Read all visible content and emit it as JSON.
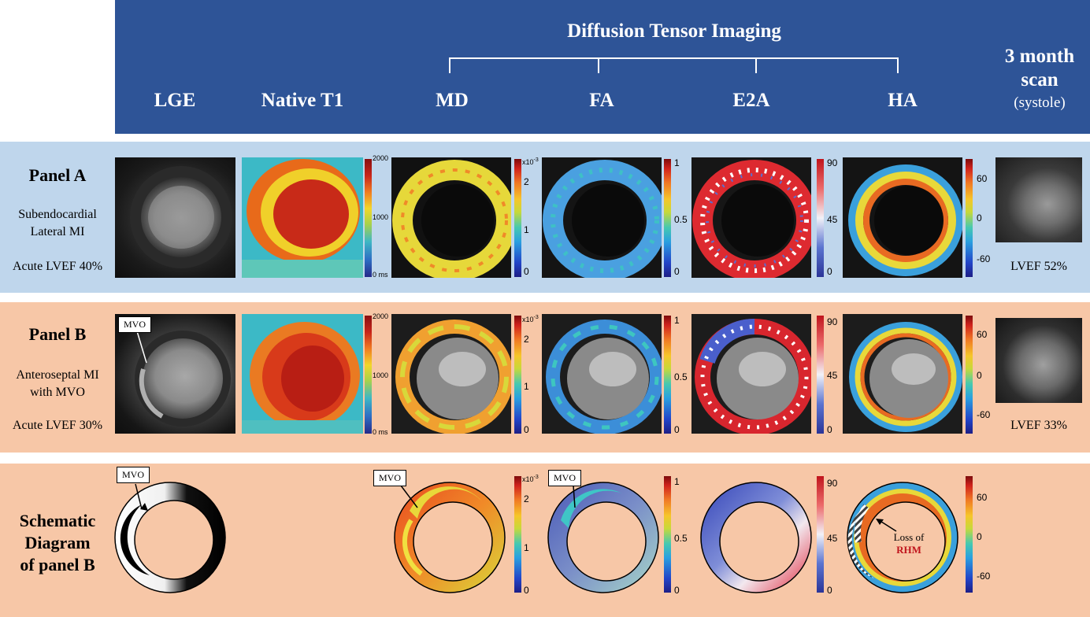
{
  "header": {
    "dti_title": "Diffusion Tensor Imaging",
    "columns": {
      "lge": "LGE",
      "native_t1": "Native T1",
      "md": "MD",
      "fa": "FA",
      "e2a": "E2A",
      "ha": "HA",
      "scan_line1": "3 month",
      "scan_line2": "scan",
      "scan_line3": "(systole)"
    }
  },
  "panel_a": {
    "title": "Panel A",
    "desc_line1": "Subendocardial",
    "desc_line2": "Lateral MI",
    "acute": "Acute LVEF 40%",
    "followup": "LVEF 52%"
  },
  "panel_b": {
    "title": "Panel B",
    "desc_line1": "Anteroseptal MI",
    "desc_line2": "with MVO",
    "acute": "Acute LVEF 30%",
    "followup": "LVEF 33%",
    "mvo_label": "MVO"
  },
  "schematic": {
    "title_line1": "Schematic",
    "title_line2": "Diagram",
    "title_line3": "of panel B",
    "mvo_label": "MVO",
    "loss_line1": "Loss of",
    "loss_line2": "RHM"
  },
  "colorbars": {
    "t1": {
      "top": "2000",
      "mid": "1000",
      "bottom": "0 ms"
    },
    "md": {
      "top": "x10",
      "exp": "-3",
      "t2": "2",
      "t1": "1",
      "bottom": "0"
    },
    "fa": {
      "top": "1",
      "mid": "0.5",
      "bottom": "0"
    },
    "e2a": {
      "top": "90",
      "mid": "45",
      "bottom": "0"
    },
    "ha": {
      "top": "60",
      "mid": "0",
      "bottom": "-60"
    }
  },
  "colors": {
    "header_bg": "#2e5497",
    "panel_a_bg": "#bfd6ec",
    "panel_b_bg": "#f7c7a7",
    "rhm_red": "#c0141c"
  }
}
